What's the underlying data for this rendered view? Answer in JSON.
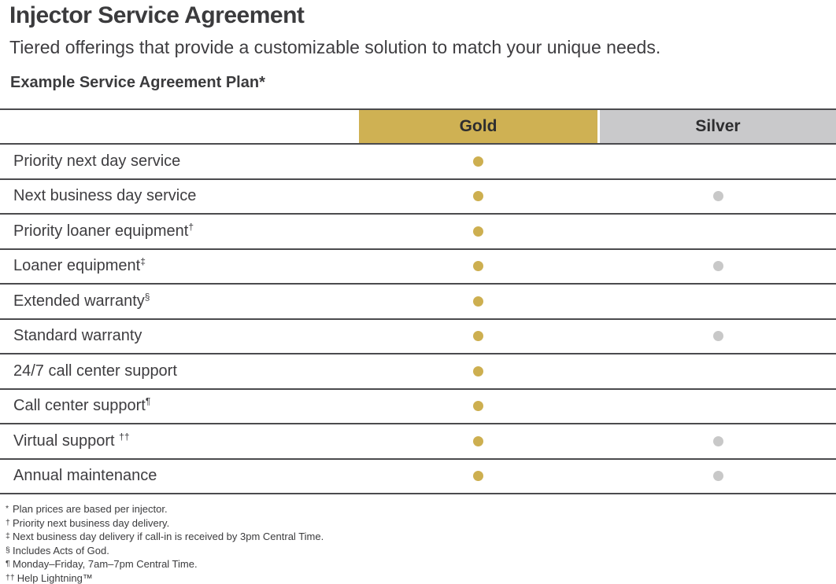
{
  "page": {
    "title": "Injector Service Agreement",
    "subtitle": "Tiered offerings that provide a customizable solution to match your unique needs.",
    "table_heading": "Example Service Agreement Plan*"
  },
  "table": {
    "columns": {
      "gold": "Gold",
      "silver": "Silver"
    },
    "included_marker": "dot",
    "rows": [
      {
        "feature": "Priority next day service",
        "sup": "",
        "gold": true,
        "silver": false
      },
      {
        "feature": "Next business day service",
        "sup": "",
        "gold": true,
        "silver": true
      },
      {
        "feature": "Priority loaner equipment",
        "sup": "†",
        "gold": true,
        "silver": false
      },
      {
        "feature": "Loaner equipment",
        "sup": "‡",
        "gold": true,
        "silver": true
      },
      {
        "feature": "Extended warranty",
        "sup": "§",
        "gold": true,
        "silver": false
      },
      {
        "feature": "Standard warranty",
        "sup": "",
        "gold": true,
        "silver": true
      },
      {
        "feature": "24/7 call center support",
        "sup": "",
        "gold": true,
        "silver": false
      },
      {
        "feature": "Call center support",
        "sup": "¶",
        "gold": true,
        "silver": false
      },
      {
        "feature": "Virtual support ",
        "sup": "††",
        "gold": true,
        "silver": true
      },
      {
        "feature": "Annual maintenance",
        "sup": "",
        "gold": true,
        "silver": true
      }
    ]
  },
  "footnotes": [
    {
      "marker": "*",
      "text": "Plan prices are based per injector."
    },
    {
      "marker": "†",
      "text": "Priority next business day delivery."
    },
    {
      "marker": "‡",
      "text": "Next business day delivery if call-in is received by 3pm Central Time."
    },
    {
      "marker": "§",
      "text": "Includes Acts of God."
    },
    {
      "marker": "¶",
      "text": "Monday–Friday, 7am–7pm Central Time."
    },
    {
      "marker": "††",
      "text": "Help Lightning™"
    }
  ],
  "colors": {
    "gold": "#CFB153",
    "silver": "#C9C9CB",
    "gold_dot": "#CDAF50",
    "silver_dot": "#C8C8C8",
    "divider": "#4B4B4E",
    "text": "#3E3D40",
    "heading": "#3B3B3D",
    "header_text": "#2D2D2F"
  }
}
